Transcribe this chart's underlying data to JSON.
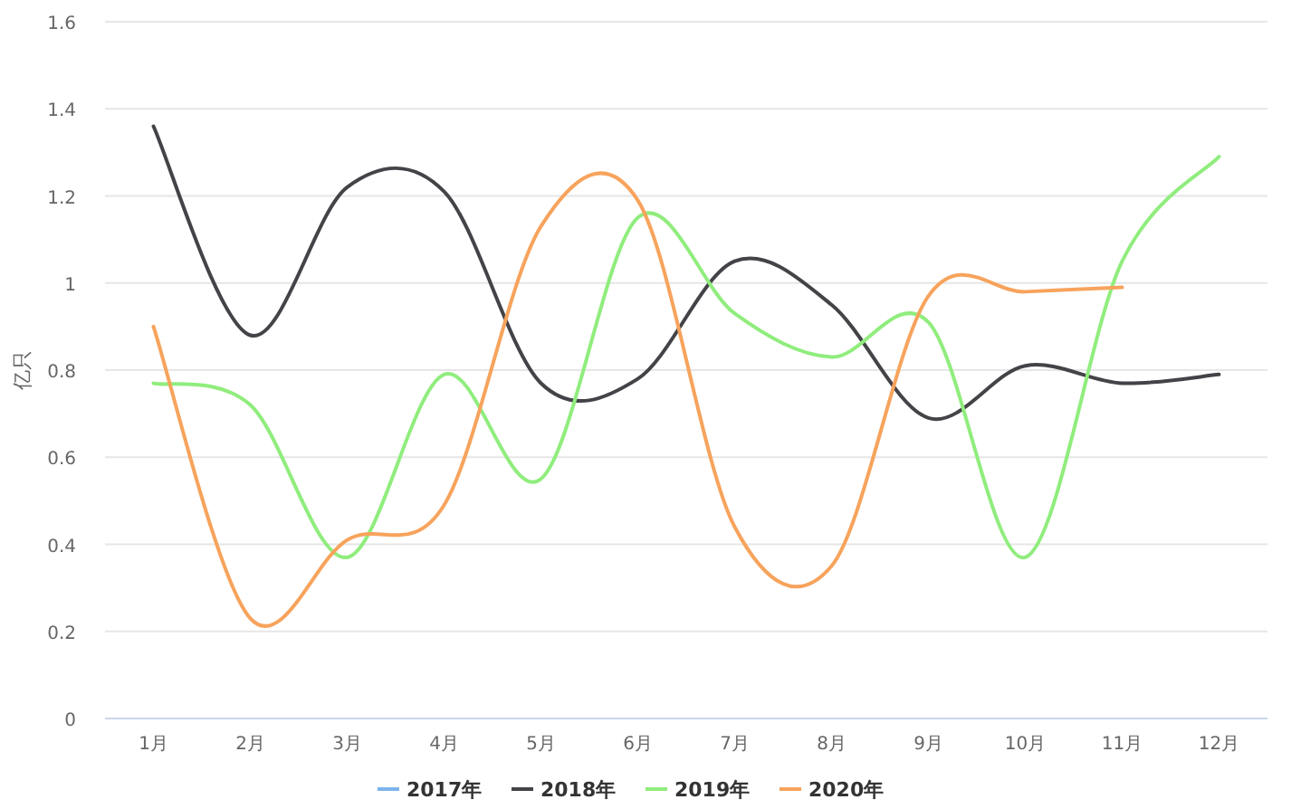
{
  "chart_data": {
    "type": "line",
    "ylabel": "亿只",
    "categories": [
      "1月",
      "2月",
      "3月",
      "4月",
      "5月",
      "6月",
      "7月",
      "8月",
      "9月",
      "10月",
      "11月",
      "12月"
    ],
    "series": [
      {
        "name": "2017年",
        "color": "#7cb5ec",
        "values": [
          null,
          null,
          null,
          null,
          null,
          null,
          null,
          null,
          null,
          null,
          null,
          null
        ]
      },
      {
        "name": "2018年",
        "color": "#434348",
        "values": [
          1.36,
          0.88,
          1.22,
          1.21,
          0.77,
          0.78,
          1.05,
          0.95,
          0.69,
          0.81,
          0.77,
          0.79
        ]
      },
      {
        "name": "2019年",
        "color": "#90ed7d",
        "values": [
          0.77,
          0.72,
          0.37,
          0.79,
          0.55,
          1.15,
          0.93,
          0.83,
          0.91,
          0.37,
          1.05,
          1.29
        ]
      },
      {
        "name": "2020年",
        "color": "#f7a35c",
        "values": [
          0.9,
          0.23,
          0.41,
          0.49,
          1.13,
          1.19,
          0.44,
          0.35,
          0.97,
          0.98,
          0.99,
          null
        ]
      }
    ],
    "ylim": [
      0,
      1.6
    ],
    "yticks": [
      0,
      0.2,
      0.4,
      0.6,
      0.8,
      1,
      1.2,
      1.4,
      1.6
    ],
    "grid": "y",
    "legend": "bottom",
    "marker": "none",
    "line_style": "solid"
  }
}
